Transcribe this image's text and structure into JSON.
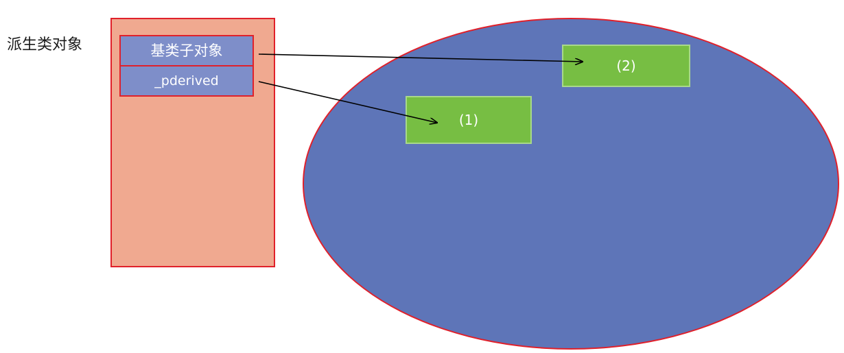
{
  "side_label": "派生类对象",
  "object": {
    "members": {
      "base_subobject": "基类子对象",
      "pderived": "_pderived"
    }
  },
  "heap": {
    "box_1_label": "(1)",
    "box_2_label": "(2)"
  },
  "colors": {
    "object_fill": "#f0a990",
    "member_fill": "#7e8ec9",
    "heap_fill": "#5e75b8",
    "box_fill": "#77be43",
    "outline_red": "#e0202a",
    "arrow": "#000000"
  }
}
